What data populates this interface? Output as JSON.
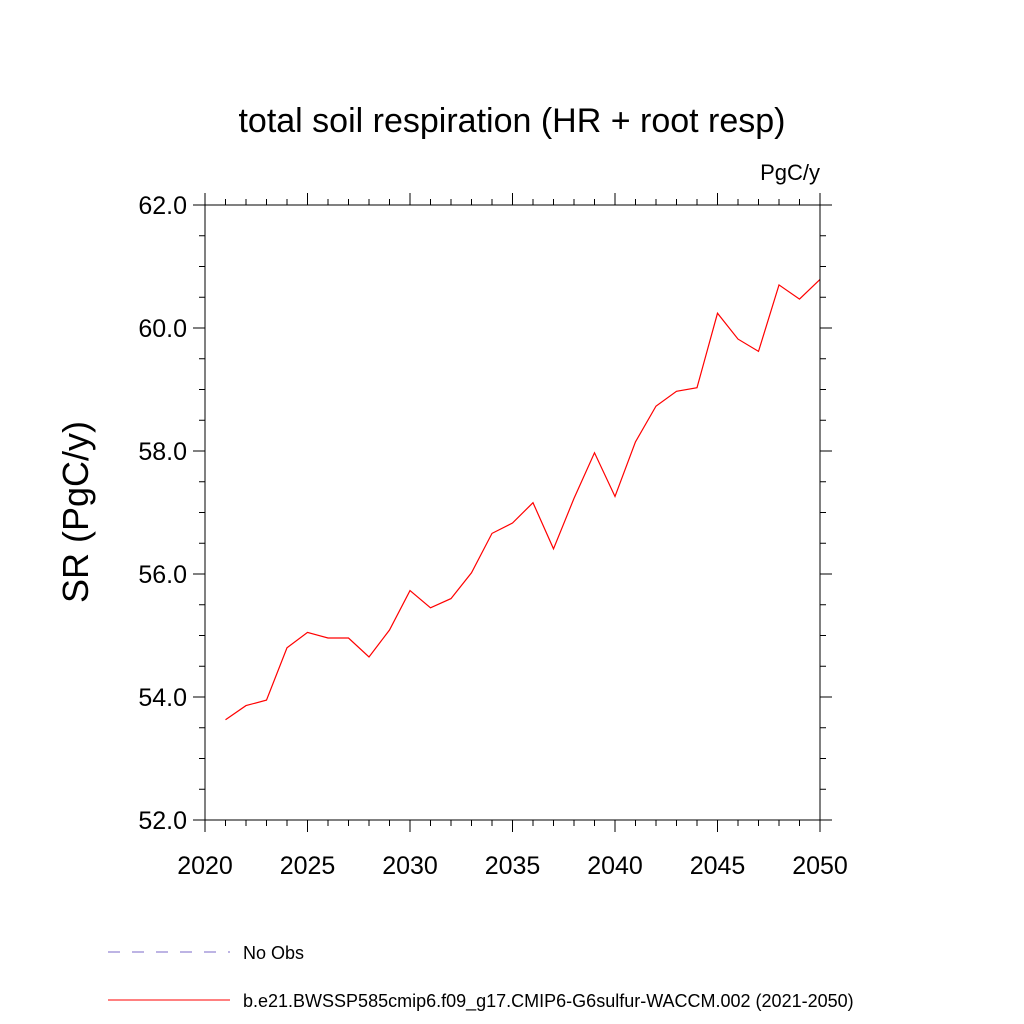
{
  "chart_data": {
    "type": "line",
    "title": "total soil respiration (HR + root resp)",
    "units_label": "PgC/y",
    "ylabel": "SR  (PgC/y)",
    "xlabel": "",
    "xlim": [
      2020,
      2050
    ],
    "ylim": [
      52.0,
      62.0
    ],
    "x_ticks": [
      2020,
      2025,
      2030,
      2035,
      2040,
      2045,
      2050
    ],
    "y_ticks": [
      52.0,
      54.0,
      56.0,
      58.0,
      60.0,
      62.0
    ],
    "x_tick_labels": [
      "2020",
      "2025",
      "2030",
      "2035",
      "2040",
      "2045",
      "2050"
    ],
    "y_tick_labels": [
      "52.0",
      "54.0",
      "56.0",
      "58.0",
      "60.0",
      "62.0"
    ],
    "grid": false,
    "legend_position": "bottom",
    "series": [
      {
        "name": "b.e21.BWSSP585cmip6.f09_g17.CMIP6-G6sulfur-WACCM.002 (2021-2050)",
        "color": "#ff0000",
        "style": "solid",
        "x": [
          2021,
          2022,
          2023,
          2024,
          2025,
          2026,
          2027,
          2028,
          2029,
          2030,
          2031,
          2032,
          2033,
          2034,
          2035,
          2036,
          2037,
          2038,
          2039,
          2040,
          2041,
          2042,
          2043,
          2044,
          2045,
          2046,
          2047,
          2048,
          2049,
          2050
        ],
        "values": [
          53.63,
          53.86,
          53.95,
          54.8,
          55.05,
          54.96,
          54.96,
          54.65,
          55.09,
          55.73,
          55.45,
          55.6,
          56.02,
          56.66,
          56.83,
          57.16,
          56.41,
          57.23,
          57.97,
          57.26,
          58.15,
          58.73,
          58.97,
          59.03,
          60.24,
          59.82,
          59.62,
          60.7,
          60.47,
          60.79
        ]
      }
    ],
    "legend": [
      {
        "label": "No Obs",
        "color": "#7b68c8",
        "style": "dashed"
      },
      {
        "label": "b.e21.BWSSP585cmip6.f09_g17.CMIP6-G6sulfur-WACCM.002 (2021-2050)",
        "color": "#ff0000",
        "style": "solid"
      }
    ]
  }
}
